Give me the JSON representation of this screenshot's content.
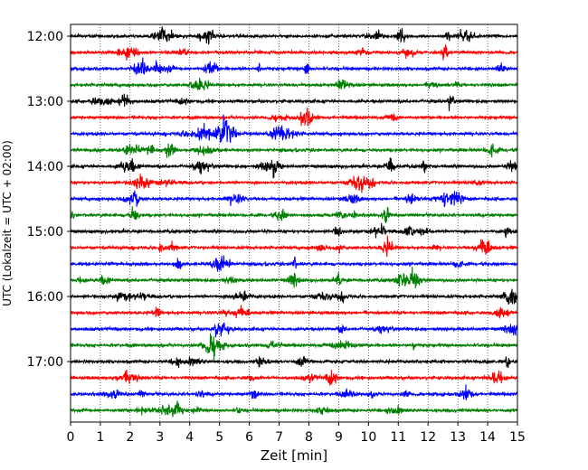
{
  "chart_data": {
    "type": "line",
    "title": "",
    "xlabel": "Zeit  [min]",
    "ylabel": "UTC (Lokalzeit = UTC + 02:00)",
    "xlim": [
      0,
      15
    ],
    "x_ticks": [
      0,
      1,
      2,
      3,
      4,
      5,
      6,
      7,
      8,
      9,
      10,
      11,
      12,
      13,
      14,
      15
    ],
    "y_time_range": [
      "12:00",
      "17:45"
    ],
    "y_tick_labels": [
      "12:00",
      "13:00",
      "14:00",
      "15:00",
      "16:00",
      "17:00"
    ],
    "trace_interval_minutes": 15,
    "grid": {
      "x": true,
      "y": false,
      "style": "dotted"
    },
    "color_cycle": [
      "#000000",
      "#ff0000",
      "#0000ff",
      "#008000"
    ],
    "series": [
      {
        "start": "12:00",
        "color": "#000000"
      },
      {
        "start": "12:15",
        "color": "#ff0000"
      },
      {
        "start": "12:30",
        "color": "#0000ff"
      },
      {
        "start": "12:45",
        "color": "#008000"
      },
      {
        "start": "13:00",
        "color": "#000000"
      },
      {
        "start": "13:15",
        "color": "#ff0000"
      },
      {
        "start": "13:30",
        "color": "#0000ff"
      },
      {
        "start": "13:45",
        "color": "#008000"
      },
      {
        "start": "14:00",
        "color": "#000000"
      },
      {
        "start": "14:15",
        "color": "#ff0000"
      },
      {
        "start": "14:30",
        "color": "#0000ff"
      },
      {
        "start": "14:45",
        "color": "#008000"
      },
      {
        "start": "15:00",
        "color": "#000000"
      },
      {
        "start": "15:15",
        "color": "#ff0000"
      },
      {
        "start": "15:30",
        "color": "#0000ff"
      },
      {
        "start": "15:45",
        "color": "#008000"
      },
      {
        "start": "16:00",
        "color": "#000000"
      },
      {
        "start": "16:15",
        "color": "#ff0000"
      },
      {
        "start": "16:30",
        "color": "#0000ff"
      },
      {
        "start": "16:45",
        "color": "#008000"
      },
      {
        "start": "17:00",
        "color": "#000000"
      },
      {
        "start": "17:15",
        "color": "#ff0000"
      },
      {
        "start": "17:30",
        "color": "#0000ff"
      },
      {
        "start": "17:45",
        "color": "#008000"
      }
    ]
  }
}
